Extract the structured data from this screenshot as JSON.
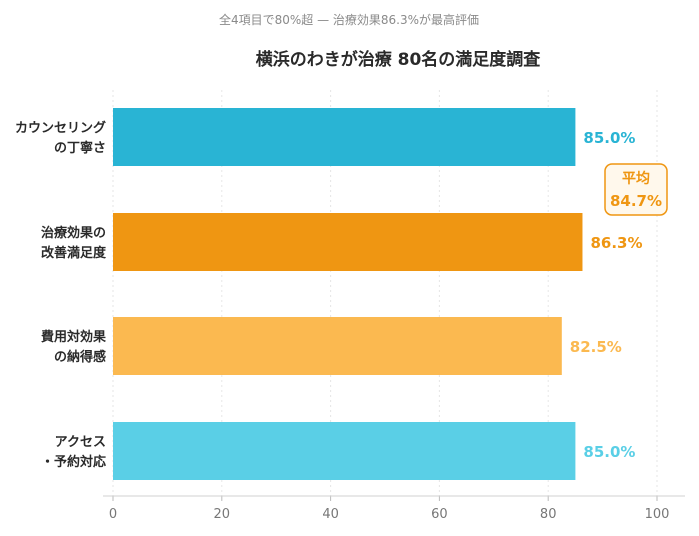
{
  "chart_data": {
    "type": "bar",
    "orientation": "horizontal",
    "subtitle": "全4項目で80%超 — 治療効果86.3%が最高評価",
    "title": "横浜のわきが治療 80名の満足度調査",
    "categories": [
      [
        "カウンセリング",
        "の丁寧さ"
      ],
      [
        "治療効果の",
        "改善満足度"
      ],
      [
        "費用対効果",
        "の納得感"
      ],
      [
        "アクセス",
        "・予約対応"
      ]
    ],
    "values": [
      85.0,
      86.3,
      82.5,
      85.0
    ],
    "value_labels": [
      "85.0%",
      "86.3%",
      "82.5%",
      "85.0%"
    ],
    "colors": [
      "#29b4d4",
      "#ef9612",
      "#fbb950",
      "#5acfe6"
    ],
    "xlim": [
      0,
      100
    ],
    "xticks": [
      "0",
      "20",
      "40",
      "60",
      "80",
      "100"
    ],
    "grid": true,
    "average": {
      "label": "平均",
      "value_label": "84.7%",
      "color": "#ef9612"
    }
  }
}
